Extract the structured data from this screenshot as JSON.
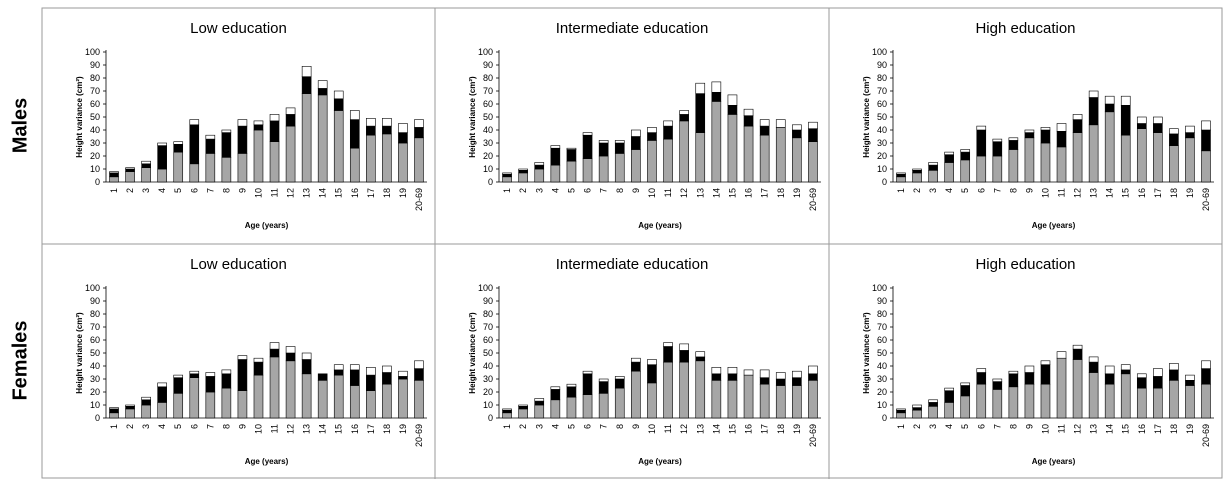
{
  "figure": {
    "row_labels": [
      "Males",
      "Females"
    ],
    "colors": {
      "gray": "#a6a6a6",
      "black": "#000000",
      "white": "#ffffff",
      "border": "#9a9a9a"
    }
  },
  "chart_data": [
    {
      "type": "bar",
      "stacked": true,
      "row": "Males",
      "title": "Low education",
      "xlabel": "Age (years)",
      "ylabel": "Height variance (cm²)",
      "ylim": [
        0,
        100
      ],
      "yticks": [
        0,
        10,
        20,
        30,
        40,
        50,
        60,
        70,
        80,
        90,
        100
      ],
      "categories": [
        "1",
        "2",
        "3",
        "4",
        "5",
        "6",
        "7",
        "8",
        "9",
        "10",
        "11",
        "12",
        "13",
        "14",
        "15",
        "16",
        "17",
        "18",
        "19",
        "20-69"
      ],
      "series": [
        {
          "color": "gray",
          "values": [
            4,
            8,
            11,
            10,
            23,
            14,
            22,
            19,
            22,
            40,
            31,
            43,
            68,
            67,
            55,
            26,
            36,
            37,
            30,
            34
          ]
        },
        {
          "color": "black",
          "values": [
            3,
            2,
            3,
            18,
            6,
            30,
            11,
            19,
            21,
            4,
            16,
            9,
            13,
            5,
            9,
            22,
            7,
            6,
            8,
            8
          ]
        },
        {
          "color": "white",
          "values": [
            1,
            1,
            2,
            2,
            2,
            4,
            3,
            2,
            5,
            3,
            5,
            5,
            8,
            6,
            6,
            7,
            6,
            6,
            7,
            6
          ]
        }
      ]
    },
    {
      "type": "bar",
      "stacked": true,
      "row": "Males",
      "title": "Intermediate education",
      "xlabel": "Age (years)",
      "ylabel": "Height variance (cm²)",
      "ylim": [
        0,
        100
      ],
      "yticks": [
        0,
        10,
        20,
        30,
        40,
        50,
        60,
        70,
        80,
        90,
        100
      ],
      "categories": [
        "1",
        "2",
        "3",
        "4",
        "5",
        "6",
        "7",
        "8",
        "9",
        "10",
        "11",
        "12",
        "13",
        "14",
        "15",
        "16",
        "17",
        "18",
        "19",
        "20-69"
      ],
      "series": [
        {
          "color": "gray",
          "values": [
            4,
            7,
            10,
            13,
            16,
            18,
            20,
            22,
            25,
            32,
            33,
            47,
            38,
            62,
            52,
            43,
            36,
            42,
            34,
            31
          ]
        },
        {
          "color": "black",
          "values": [
            2,
            2,
            3,
            13,
            9,
            18,
            10,
            8,
            10,
            6,
            10,
            5,
            30,
            7,
            7,
            8,
            7,
            0,
            6,
            10
          ]
        },
        {
          "color": "white",
          "values": [
            1,
            1,
            2,
            2,
            1,
            2,
            2,
            2,
            5,
            4,
            4,
            3,
            8,
            8,
            8,
            5,
            5,
            6,
            4,
            5
          ]
        }
      ]
    },
    {
      "type": "bar",
      "stacked": true,
      "row": "Males",
      "title": "High education",
      "xlabel": "Age (years)",
      "ylabel": "Height variance (cm²)",
      "ylim": [
        0,
        100
      ],
      "yticks": [
        0,
        10,
        20,
        30,
        40,
        50,
        60,
        70,
        80,
        90,
        100
      ],
      "categories": [
        "1",
        "2",
        "3",
        "4",
        "5",
        "6",
        "7",
        "8",
        "9",
        "10",
        "11",
        "12",
        "13",
        "14",
        "15",
        "16",
        "17",
        "18",
        "19",
        "20-69"
      ],
      "series": [
        {
          "color": "gray",
          "values": [
            4,
            7,
            9,
            15,
            17,
            20,
            20,
            25,
            34,
            30,
            27,
            38,
            44,
            54,
            36,
            41,
            38,
            28,
            34,
            24
          ]
        },
        {
          "color": "black",
          "values": [
            2,
            2,
            4,
            6,
            6,
            20,
            11,
            7,
            4,
            10,
            12,
            10,
            21,
            6,
            23,
            4,
            7,
            9,
            4,
            16
          ]
        },
        {
          "color": "white",
          "values": [
            1,
            1,
            2,
            2,
            2,
            3,
            2,
            2,
            2,
            2,
            6,
            4,
            5,
            6,
            7,
            5,
            5,
            4,
            5,
            7
          ]
        }
      ]
    },
    {
      "type": "bar",
      "stacked": true,
      "row": "Females",
      "title": "Low education",
      "xlabel": "Age (years)",
      "ylabel": "Height variance (cm²)",
      "ylim": [
        0,
        100
      ],
      "yticks": [
        0,
        10,
        20,
        30,
        40,
        50,
        60,
        70,
        80,
        90,
        100
      ],
      "categories": [
        "1",
        "2",
        "3",
        "4",
        "5",
        "6",
        "7",
        "8",
        "9",
        "10",
        "11",
        "12",
        "13",
        "14",
        "15",
        "16",
        "17",
        "18",
        "19",
        "20-69"
      ],
      "series": [
        {
          "color": "gray",
          "values": [
            4,
            7,
            10,
            12,
            19,
            31,
            20,
            23,
            21,
            33,
            47,
            44,
            34,
            29,
            33,
            25,
            21,
            26,
            30,
            29
          ]
        },
        {
          "color": "black",
          "values": [
            3,
            2,
            4,
            12,
            12,
            3,
            12,
            11,
            24,
            10,
            6,
            6,
            11,
            5,
            4,
            12,
            12,
            9,
            2,
            9
          ]
        },
        {
          "color": "white",
          "values": [
            1,
            1,
            2,
            3,
            2,
            2,
            3,
            3,
            3,
            3,
            5,
            5,
            5,
            0,
            4,
            4,
            6,
            5,
            4,
            6
          ]
        }
      ]
    },
    {
      "type": "bar",
      "stacked": true,
      "row": "Females",
      "title": "Intermediate education",
      "xlabel": "Age (years)",
      "ylabel": "Height variance (cm²)",
      "ylim": [
        0,
        100
      ],
      "yticks": [
        0,
        10,
        20,
        30,
        40,
        50,
        60,
        70,
        80,
        90,
        100
      ],
      "categories": [
        "1",
        "2",
        "3",
        "4",
        "5",
        "6",
        "7",
        "8",
        "9",
        "10",
        "11",
        "12",
        "13",
        "14",
        "15",
        "16",
        "17",
        "18",
        "19",
        "20-69"
      ],
      "series": [
        {
          "color": "gray",
          "values": [
            4,
            7,
            10,
            14,
            16,
            18,
            19,
            23,
            36,
            27,
            43,
            43,
            44,
            29,
            29,
            33,
            26,
            25,
            25,
            29
          ]
        },
        {
          "color": "black",
          "values": [
            2,
            2,
            3,
            8,
            8,
            16,
            9,
            7,
            7,
            14,
            12,
            9,
            3,
            5,
            5,
            0,
            5,
            5,
            6,
            5
          ]
        },
        {
          "color": "white",
          "values": [
            1,
            1,
            2,
            2,
            2,
            2,
            2,
            2,
            3,
            4,
            3,
            5,
            4,
            5,
            5,
            4,
            6,
            5,
            5,
            6
          ]
        }
      ]
    },
    {
      "type": "bar",
      "stacked": true,
      "row": "Females",
      "title": "High education",
      "xlabel": "Age (years)",
      "ylabel": "Height variance (cm²)",
      "ylim": [
        0,
        100
      ],
      "yticks": [
        0,
        10,
        20,
        30,
        40,
        50,
        60,
        70,
        80,
        90,
        100
      ],
      "categories": [
        "1",
        "2",
        "3",
        "4",
        "5",
        "6",
        "7",
        "8",
        "9",
        "10",
        "11",
        "12",
        "13",
        "14",
        "15",
        "16",
        "17",
        "18",
        "19",
        "20-69"
      ],
      "series": [
        {
          "color": "gray",
          "values": [
            4,
            6,
            9,
            12,
            17,
            26,
            22,
            24,
            26,
            26,
            46,
            45,
            35,
            26,
            34,
            23,
            23,
            29,
            25,
            26
          ]
        },
        {
          "color": "black",
          "values": [
            2,
            2,
            3,
            9,
            8,
            9,
            6,
            10,
            9,
            15,
            0,
            8,
            8,
            8,
            3,
            8,
            9,
            8,
            4,
            12
          ]
        },
        {
          "color": "white",
          "values": [
            1,
            2,
            2,
            2,
            2,
            3,
            2,
            2,
            5,
            3,
            5,
            3,
            4,
            6,
            4,
            3,
            6,
            5,
            4,
            6
          ]
        }
      ]
    }
  ]
}
